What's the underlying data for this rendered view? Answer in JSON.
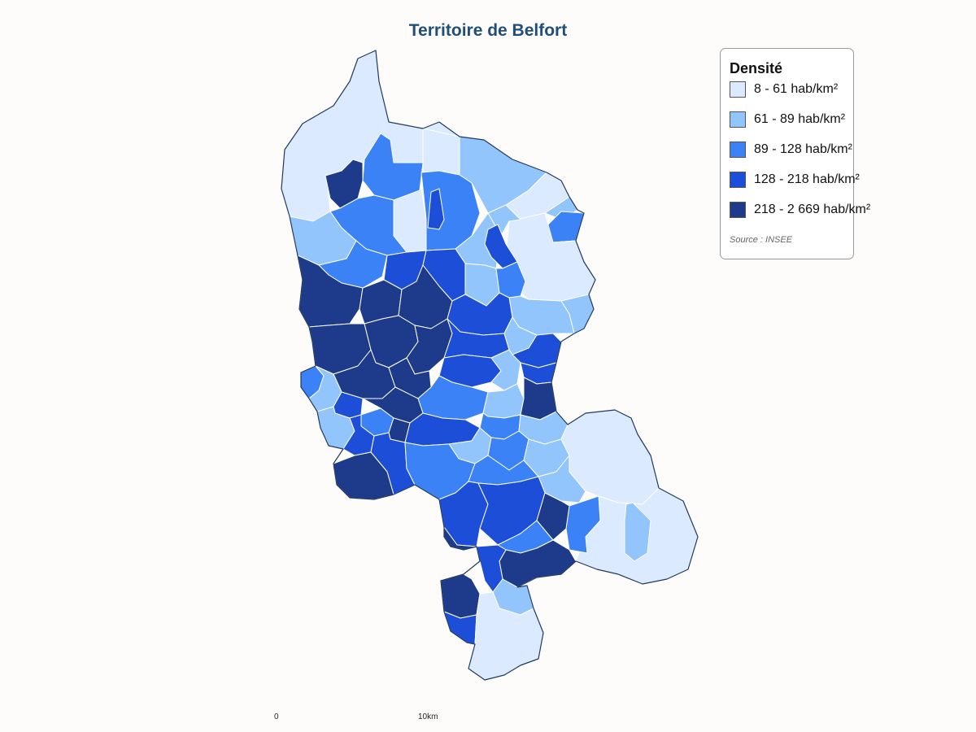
{
  "title": "Territoire de Belfort",
  "legend": {
    "title": "Densité",
    "classes": [
      {
        "label": "8 - 61 hab/km²",
        "color": "#dbeafe"
      },
      {
        "label": "61 - 89 hab/km²",
        "color": "#93c5fd"
      },
      {
        "label": "89 - 128 hab/km²",
        "color": "#3b82f6"
      },
      {
        "label": "128 - 218 hab/km²",
        "color": "#1d4ed8"
      },
      {
        "label": "218 - 2 669 hab/km²",
        "color": "#1e3a8a"
      }
    ],
    "source": "Source : INSEE"
  },
  "scale": {
    "start_label": "0",
    "end_label": "10km"
  },
  "colors": {
    "title": "#1f4e79",
    "commune_border": "#ffffff",
    "department_outline": "#1e3a5f"
  }
}
